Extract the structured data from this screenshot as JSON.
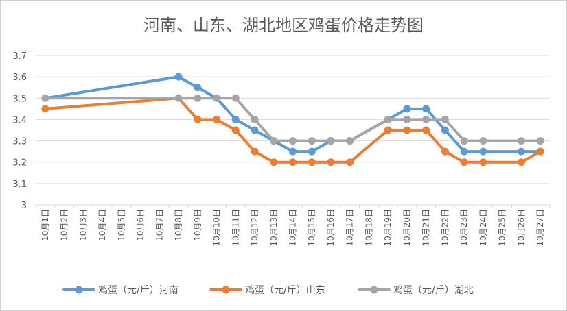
{
  "chart_data": {
    "type": "line",
    "title": "河南、山东、湖北地区鸡蛋价格走势图",
    "categories": [
      "10月1日",
      "10月2日",
      "10月3日",
      "10月4日",
      "10月5日",
      "10月6日",
      "10月7日",
      "10月8日",
      "10月9日",
      "10月10日",
      "10月11日",
      "10月12日",
      "10月13日",
      "10月14日",
      "10月15日",
      "10月16日",
      "10月17日",
      "10月18日",
      "10月19日",
      "10月20日",
      "10月21日",
      "10月22日",
      "10月23日",
      "10月24日",
      "10月25日",
      "10月26日",
      "10月27日"
    ],
    "ylim": [
      3,
      3.7
    ],
    "yticks": [
      "3",
      "3.1",
      "3.2",
      "3.3",
      "3.4",
      "3.5",
      "3.6",
      "3.7"
    ],
    "grid": "horizontal",
    "legend": "bottom",
    "series": [
      {
        "name": "鸡蛋（元/斤）河南",
        "color": "#5B9BD5",
        "values": [
          3.5,
          null,
          null,
          null,
          null,
          null,
          null,
          3.6,
          3.55,
          3.5,
          3.4,
          3.35,
          3.3,
          3.25,
          3.25,
          3.3,
          3.3,
          null,
          3.4,
          3.45,
          3.45,
          3.35,
          3.25,
          3.25,
          null,
          3.25,
          3.25
        ]
      },
      {
        "name": "鸡蛋（元/斤）山东",
        "color": "#ED7D31",
        "values": [
          3.45,
          null,
          null,
          null,
          null,
          null,
          null,
          3.5,
          3.4,
          3.4,
          3.35,
          3.25,
          3.2,
          3.2,
          3.2,
          3.2,
          3.2,
          null,
          3.35,
          3.35,
          3.35,
          3.25,
          3.2,
          3.2,
          null,
          3.2,
          3.25
        ]
      },
      {
        "name": "鸡蛋（元/斤）湖北",
        "color": "#A5A5A5",
        "values": [
          3.5,
          null,
          null,
          null,
          null,
          null,
          null,
          3.5,
          3.5,
          3.5,
          3.5,
          3.4,
          3.3,
          3.3,
          3.3,
          3.3,
          3.3,
          null,
          3.4,
          3.4,
          3.4,
          3.4,
          3.3,
          3.3,
          null,
          3.3,
          3.3
        ]
      }
    ]
  }
}
